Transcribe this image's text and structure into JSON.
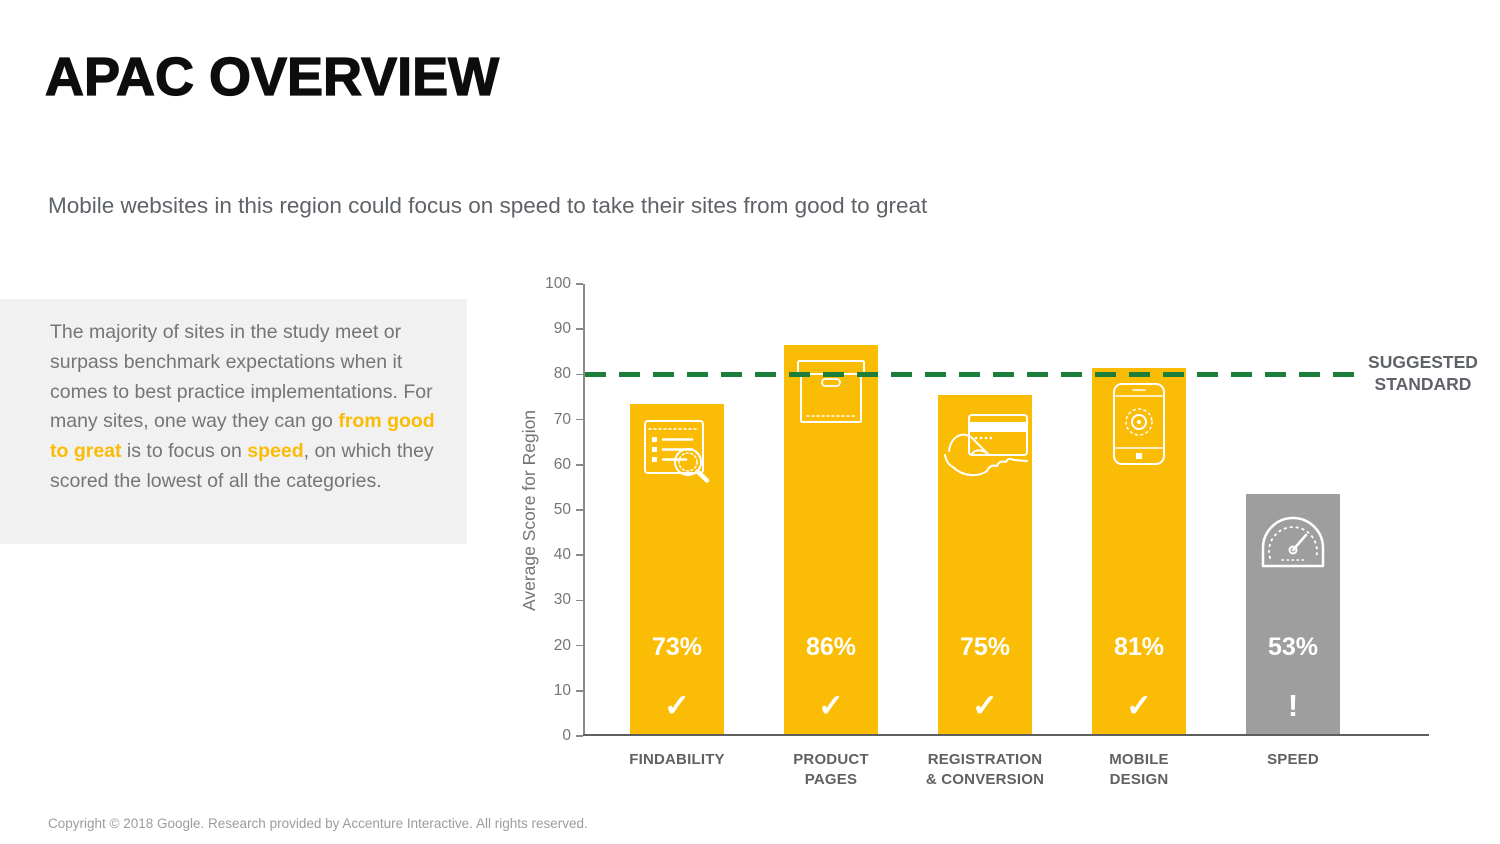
{
  "page": {
    "title": "APAC OVERVIEW",
    "subtitle": "Mobile websites in this region could focus on speed to take their sites from good to great",
    "footer": "Copyright © 2018 Google. Research provided by Accenture Interactive. All rights reserved."
  },
  "summary_note": {
    "segments": [
      {
        "text": "The majority of sites in the study meet or surpass benchmark expectations when it comes to best practice implementations. For many sites, one way they can go ",
        "highlight": false
      },
      {
        "text": "from good to great",
        "highlight": true
      },
      {
        "text": " is to focus on ",
        "highlight": false
      },
      {
        "text": "speed",
        "highlight": true
      },
      {
        "text": ", on which they scored the lowest of all the categories.",
        "highlight": false
      }
    ]
  },
  "chart_data": {
    "type": "bar",
    "title": "",
    "xlabel": "",
    "ylabel": "Average Score for Region",
    "ylim": [
      0,
      100
    ],
    "ytick_step": 10,
    "ytick_labels": [
      "0",
      "10",
      "20",
      "30",
      "40",
      "50",
      "60",
      "70",
      "80",
      "90",
      "100"
    ],
    "grid": false,
    "categories": [
      "FINDABILITY",
      "PRODUCT PAGES",
      "REGISTRATION & CONVERSION",
      "MOBILE DESIGN",
      "SPEED"
    ],
    "category_lines": [
      [
        "FINDABILITY"
      ],
      [
        "PRODUCT",
        "PAGES"
      ],
      [
        "REGISTRATION",
        "& CONVERSION"
      ],
      [
        "MOBILE",
        "DESIGN"
      ],
      [
        "SPEED"
      ]
    ],
    "values": [
      73,
      86,
      75,
      81,
      53
    ],
    "bar_labels": [
      "73%",
      "86%",
      "75%",
      "81%",
      "53%"
    ],
    "status_marks": [
      "✓",
      "✓",
      "✓",
      "✓",
      "!"
    ],
    "bar_icons": [
      "findability-icon",
      "product-pages-icon",
      "payment-card-hand-icon",
      "mobile-phone-icon",
      "speedometer-icon"
    ],
    "bar_colors": [
      "#FBBC05",
      "#FBBC05",
      "#FBBC05",
      "#FBBC05",
      "#9E9E9E"
    ],
    "reference_line": {
      "value": 80,
      "label": "SUGGESTED STANDARD",
      "color": "#1B7F3B",
      "style": "dashed"
    }
  },
  "colors": {
    "accent_yellow": "#FBBC05",
    "muted_gray_bar": "#9E9E9E",
    "standard_green": "#1B7F3B"
  }
}
